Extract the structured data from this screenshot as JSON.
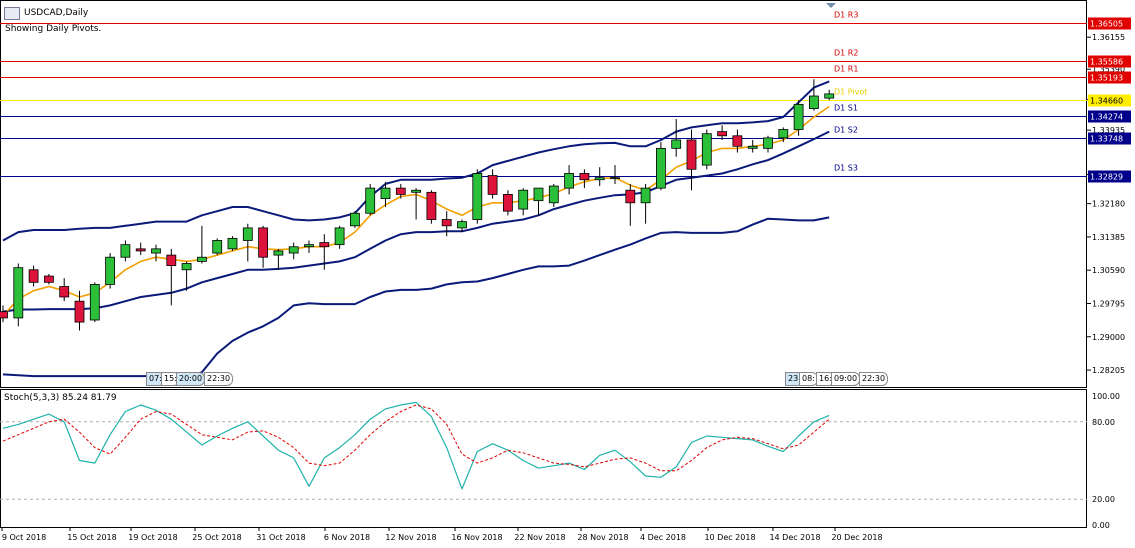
{
  "window": {
    "symbol_title": "USDCAD,Daily",
    "indicator_note": "Showing Daily Pivots."
  },
  "price_axis": {
    "labels": [
      "1.36155",
      "1.35390",
      "1.34660",
      "1.33935",
      "1.32875",
      "1.32180",
      "1.31385",
      "1.30590",
      "1.29795",
      "1.29000",
      "1.28205"
    ]
  },
  "pivots": [
    {
      "name": "D1 R3",
      "value": 1.36505,
      "value_label": "1.36505",
      "color": "#e10000",
      "label_color": "#d40000"
    },
    {
      "name": "D1 R2",
      "value": 1.35586,
      "value_label": "1.35586",
      "color": "#e10000",
      "label_color": "#d40000"
    },
    {
      "name": "D1 R1",
      "value": 1.35193,
      "value_label": "1.35193",
      "color": "#e10000",
      "label_color": "#d40000"
    },
    {
      "name": "D1 Pivot",
      "value": 1.3466,
      "value_label": "1.34660",
      "color": "#ffee00",
      "label_color": "#e8d000"
    },
    {
      "name": "D1 S1",
      "value": 1.34274,
      "value_label": "1.34274",
      "color": "#00008b",
      "label_color": "#00008b"
    },
    {
      "name": "D1 S2",
      "value": 1.33748,
      "value_label": "1.33748",
      "color": "#00008b",
      "label_color": "#00008b"
    },
    {
      "name": "D1 S3",
      "value": 1.32829,
      "value_label": "1.32829",
      "color": "#00008b",
      "label_color": "#00008b"
    }
  ],
  "chart_data": {
    "type": "candlestick",
    "symbol": "USDCAD",
    "timeframe": "Daily",
    "ylim": [
      1.278,
      1.369
    ],
    "colors": {
      "bull": "#2bbf3a",
      "bear": "#dc143c",
      "wick": "#000000",
      "ma": "#f2a000",
      "bands": "#0a1a7a"
    },
    "candles": [
      {
        "o": 1.296,
        "h": 1.2975,
        "l": 1.2935,
        "c": 1.2945
      },
      {
        "o": 1.2945,
        "h": 1.3075,
        "l": 1.2925,
        "c": 1.3065
      },
      {
        "o": 1.306,
        "h": 1.307,
        "l": 1.302,
        "c": 1.303
      },
      {
        "o": 1.3045,
        "h": 1.305,
        "l": 1.3025,
        "c": 1.303
      },
      {
        "o": 1.302,
        "h": 1.304,
        "l": 1.2985,
        "c": 1.2995
      },
      {
        "o": 1.2985,
        "h": 1.301,
        "l": 1.2915,
        "c": 1.2935
      },
      {
        "o": 1.294,
        "h": 1.303,
        "l": 1.2935,
        "c": 1.3025
      },
      {
        "o": 1.3025,
        "h": 1.31,
        "l": 1.3015,
        "c": 1.309
      },
      {
        "o": 1.309,
        "h": 1.313,
        "l": 1.308,
        "c": 1.312
      },
      {
        "o": 1.311,
        "h": 1.3125,
        "l": 1.3095,
        "c": 1.3105
      },
      {
        "o": 1.31,
        "h": 1.312,
        "l": 1.308,
        "c": 1.311
      },
      {
        "o": 1.3095,
        "h": 1.311,
        "l": 1.2975,
        "c": 1.307
      },
      {
        "o": 1.306,
        "h": 1.308,
        "l": 1.301,
        "c": 1.3075
      },
      {
        "o": 1.308,
        "h": 1.3165,
        "l": 1.3075,
        "c": 1.309
      },
      {
        "o": 1.31,
        "h": 1.3135,
        "l": 1.3095,
        "c": 1.313
      },
      {
        "o": 1.311,
        "h": 1.314,
        "l": 1.3105,
        "c": 1.3135
      },
      {
        "o": 1.313,
        "h": 1.317,
        "l": 1.308,
        "c": 1.316
      },
      {
        "o": 1.316,
        "h": 1.3165,
        "l": 1.3065,
        "c": 1.309
      },
      {
        "o": 1.3095,
        "h": 1.311,
        "l": 1.306,
        "c": 1.3105
      },
      {
        "o": 1.31,
        "h": 1.3125,
        "l": 1.3085,
        "c": 1.3115
      },
      {
        "o": 1.3115,
        "h": 1.313,
        "l": 1.31,
        "c": 1.312
      },
      {
        "o": 1.3125,
        "h": 1.3145,
        "l": 1.306,
        "c": 1.3115
      },
      {
        "o": 1.312,
        "h": 1.3165,
        "l": 1.311,
        "c": 1.316
      },
      {
        "o": 1.3165,
        "h": 1.32,
        "l": 1.316,
        "c": 1.3195
      },
      {
        "o": 1.3195,
        "h": 1.3265,
        "l": 1.319,
        "c": 1.3255
      },
      {
        "o": 1.323,
        "h": 1.327,
        "l": 1.321,
        "c": 1.3255
      },
      {
        "o": 1.3255,
        "h": 1.3265,
        "l": 1.323,
        "c": 1.324
      },
      {
        "o": 1.3245,
        "h": 1.3255,
        "l": 1.318,
        "c": 1.325
      },
      {
        "o": 1.3245,
        "h": 1.325,
        "l": 1.317,
        "c": 1.318
      },
      {
        "o": 1.318,
        "h": 1.32,
        "l": 1.314,
        "c": 1.3165
      },
      {
        "o": 1.316,
        "h": 1.318,
        "l": 1.315,
        "c": 1.3175
      },
      {
        "o": 1.318,
        "h": 1.33,
        "l": 1.317,
        "c": 1.329
      },
      {
        "o": 1.3285,
        "h": 1.33,
        "l": 1.323,
        "c": 1.324
      },
      {
        "o": 1.324,
        "h": 1.325,
        "l": 1.319,
        "c": 1.32
      },
      {
        "o": 1.3205,
        "h": 1.3255,
        "l": 1.319,
        "c": 1.325
      },
      {
        "o": 1.3225,
        "h": 1.3255,
        "l": 1.319,
        "c": 1.3255
      },
      {
        "o": 1.322,
        "h": 1.3265,
        "l": 1.321,
        "c": 1.326
      },
      {
        "o": 1.3255,
        "h": 1.331,
        "l": 1.324,
        "c": 1.329
      },
      {
        "o": 1.329,
        "h": 1.33,
        "l": 1.3255,
        "c": 1.3275
      },
      {
        "o": 1.3275,
        "h": 1.3305,
        "l": 1.326,
        "c": 1.328
      },
      {
        "o": 1.3278,
        "h": 1.331,
        "l": 1.3265,
        "c": 1.328
      },
      {
        "o": 1.325,
        "h": 1.3265,
        "l": 1.3165,
        "c": 1.322
      },
      {
        "o": 1.322,
        "h": 1.3265,
        "l": 1.317,
        "c": 1.3255
      },
      {
        "o": 1.3255,
        "h": 1.3365,
        "l": 1.325,
        "c": 1.335
      },
      {
        "o": 1.335,
        "h": 1.342,
        "l": 1.333,
        "c": 1.337
      },
      {
        "o": 1.337,
        "h": 1.3395,
        "l": 1.325,
        "c": 1.33
      },
      {
        "o": 1.331,
        "h": 1.3395,
        "l": 1.33,
        "c": 1.3385
      },
      {
        "o": 1.339,
        "h": 1.3405,
        "l": 1.337,
        "c": 1.338
      },
      {
        "o": 1.338,
        "h": 1.3395,
        "l": 1.334,
        "c": 1.3355
      },
      {
        "o": 1.335,
        "h": 1.337,
        "l": 1.334,
        "c": 1.3355
      },
      {
        "o": 1.335,
        "h": 1.338,
        "l": 1.334,
        "c": 1.3375
      },
      {
        "o": 1.3375,
        "h": 1.34,
        "l": 1.3365,
        "c": 1.3395
      },
      {
        "o": 1.3395,
        "h": 1.3465,
        "l": 1.338,
        "c": 1.3455
      },
      {
        "o": 1.3445,
        "h": 1.3515,
        "l": 1.344,
        "c": 1.3475
      },
      {
        "o": 1.347,
        "h": 1.349,
        "l": 1.3465,
        "c": 1.348
      }
    ],
    "ma_line": [
      1.295,
      1.299,
      1.301,
      1.302,
      1.301,
      1.2995,
      1.3005,
      1.303,
      1.306,
      1.308,
      1.309,
      1.3085,
      1.308,
      1.3085,
      1.3095,
      1.3105,
      1.3115,
      1.311,
      1.3108,
      1.311,
      1.3115,
      1.3115,
      1.3125,
      1.315,
      1.319,
      1.3215,
      1.3235,
      1.324,
      1.3225,
      1.3205,
      1.319,
      1.321,
      1.322,
      1.322,
      1.3225,
      1.3232,
      1.3242,
      1.3258,
      1.327,
      1.3278,
      1.328,
      1.3262,
      1.325,
      1.3275,
      1.3305,
      1.332,
      1.334,
      1.335,
      1.335,
      1.3355,
      1.336,
      1.337,
      1.3395,
      1.3425,
      1.345
    ],
    "upper_band": [
      1.313,
      1.315,
      1.3155,
      1.3155,
      1.3155,
      1.3158,
      1.316,
      1.316,
      1.3165,
      1.317,
      1.3175,
      1.3175,
      1.3175,
      1.319,
      1.32,
      1.321,
      1.321,
      1.32,
      1.319,
      1.318,
      1.3178,
      1.318,
      1.3185,
      1.3195,
      1.3235,
      1.3265,
      1.3275,
      1.3275,
      1.3275,
      1.3278,
      1.328,
      1.329,
      1.331,
      1.332,
      1.333,
      1.334,
      1.3348,
      1.3355,
      1.336,
      1.3362,
      1.3363,
      1.3355,
      1.3355,
      1.337,
      1.339,
      1.34,
      1.3405,
      1.341,
      1.341,
      1.3412,
      1.3415,
      1.3425,
      1.346,
      1.3495,
      1.351
    ],
    "middle_band": [
      1.296,
      1.2965,
      1.2965,
      1.2966,
      1.2966,
      1.2966,
      1.2968,
      1.2975,
      1.2985,
      1.2995,
      1.3,
      1.3005,
      1.3015,
      1.303,
      1.304,
      1.305,
      1.306,
      1.306,
      1.3062,
      1.3065,
      1.307,
      1.3075,
      1.308,
      1.309,
      1.311,
      1.313,
      1.3145,
      1.315,
      1.315,
      1.3152,
      1.3152,
      1.316,
      1.317,
      1.3175,
      1.318,
      1.319,
      1.3205,
      1.3215,
      1.3225,
      1.3232,
      1.3238,
      1.324,
      1.3245,
      1.326,
      1.3275,
      1.328,
      1.3285,
      1.329,
      1.33,
      1.3312,
      1.3322,
      1.3338,
      1.3355,
      1.3372,
      1.339
    ],
    "lower_band": [
      1.281,
      1.2808,
      1.2806,
      1.2806,
      1.2806,
      1.2806,
      1.2806,
      1.2806,
      1.2806,
      1.2806,
      1.2806,
      1.2806,
      1.2806,
      1.2815,
      1.286,
      1.289,
      1.291,
      1.2925,
      1.2945,
      1.2975,
      1.298,
      1.2978,
      1.2978,
      1.2978,
      1.2995,
      1.3008,
      1.3012,
      1.3012,
      1.3015,
      1.3025,
      1.303,
      1.3032,
      1.304,
      1.305,
      1.306,
      1.3068,
      1.3068,
      1.307,
      1.3082,
      1.3095,
      1.3108,
      1.312,
      1.3135,
      1.3148,
      1.315,
      1.3148,
      1.3148,
      1.3148,
      1.3152,
      1.3168,
      1.3182,
      1.318,
      1.3178,
      1.3178,
      1.3185
    ],
    "xlabels": [
      "9 Oct 2018",
      "15 Oct 2018",
      "19 Oct 2018",
      "25 Oct 2018",
      "31 Oct 2018",
      "6 Nov 2018",
      "12 Nov 2018",
      "16 Nov 2018",
      "22 Nov 2018",
      "28 Nov 2018",
      "4 Dec 2018",
      "10 Dec 2018",
      "14 Dec 2018",
      "20 Dec 2018"
    ],
    "session_chips_left": [
      "07:",
      "15:",
      "20:00",
      "22:30"
    ],
    "session_chips_right": [
      "23:",
      "08:",
      "16:",
      "09:00",
      "22:30"
    ]
  },
  "stochastic": {
    "label": "Stoch(5,3,3) 85.24 81.79",
    "params": "5,3,3",
    "k_value": 85.24,
    "d_value": 81.79,
    "ylim": [
      0,
      100
    ],
    "levels": [
      80,
      20
    ],
    "axis_labels": [
      "100.00",
      "80.00",
      "20.00",
      "0.00"
    ],
    "k_color": "#20b2aa",
    "d_color": "#e00000",
    "k": [
      75,
      78,
      82,
      86,
      80,
      50,
      48,
      70,
      88,
      93,
      89,
      82,
      72,
      62,
      69,
      75,
      80,
      69,
      58,
      52,
      30,
      52,
      60,
      70,
      82,
      90,
      93,
      95,
      84,
      60,
      28,
      57,
      63,
      58,
      50,
      44,
      46,
      48,
      43,
      54,
      58,
      49,
      38,
      37,
      45,
      64,
      69,
      68,
      67,
      66,
      61,
      57,
      69,
      80,
      85
    ],
    "d": [
      65,
      70,
      75,
      80,
      82,
      72,
      60,
      55,
      68,
      82,
      88,
      86,
      78,
      70,
      68,
      66,
      72,
      73,
      68,
      60,
      48,
      46,
      48,
      58,
      70,
      80,
      88,
      93,
      90,
      78,
      55,
      48,
      52,
      58,
      56,
      52,
      48,
      47,
      45,
      48,
      51,
      52,
      48,
      42,
      42,
      50,
      60,
      66,
      68,
      67,
      63,
      59,
      62,
      72,
      82
    ]
  }
}
